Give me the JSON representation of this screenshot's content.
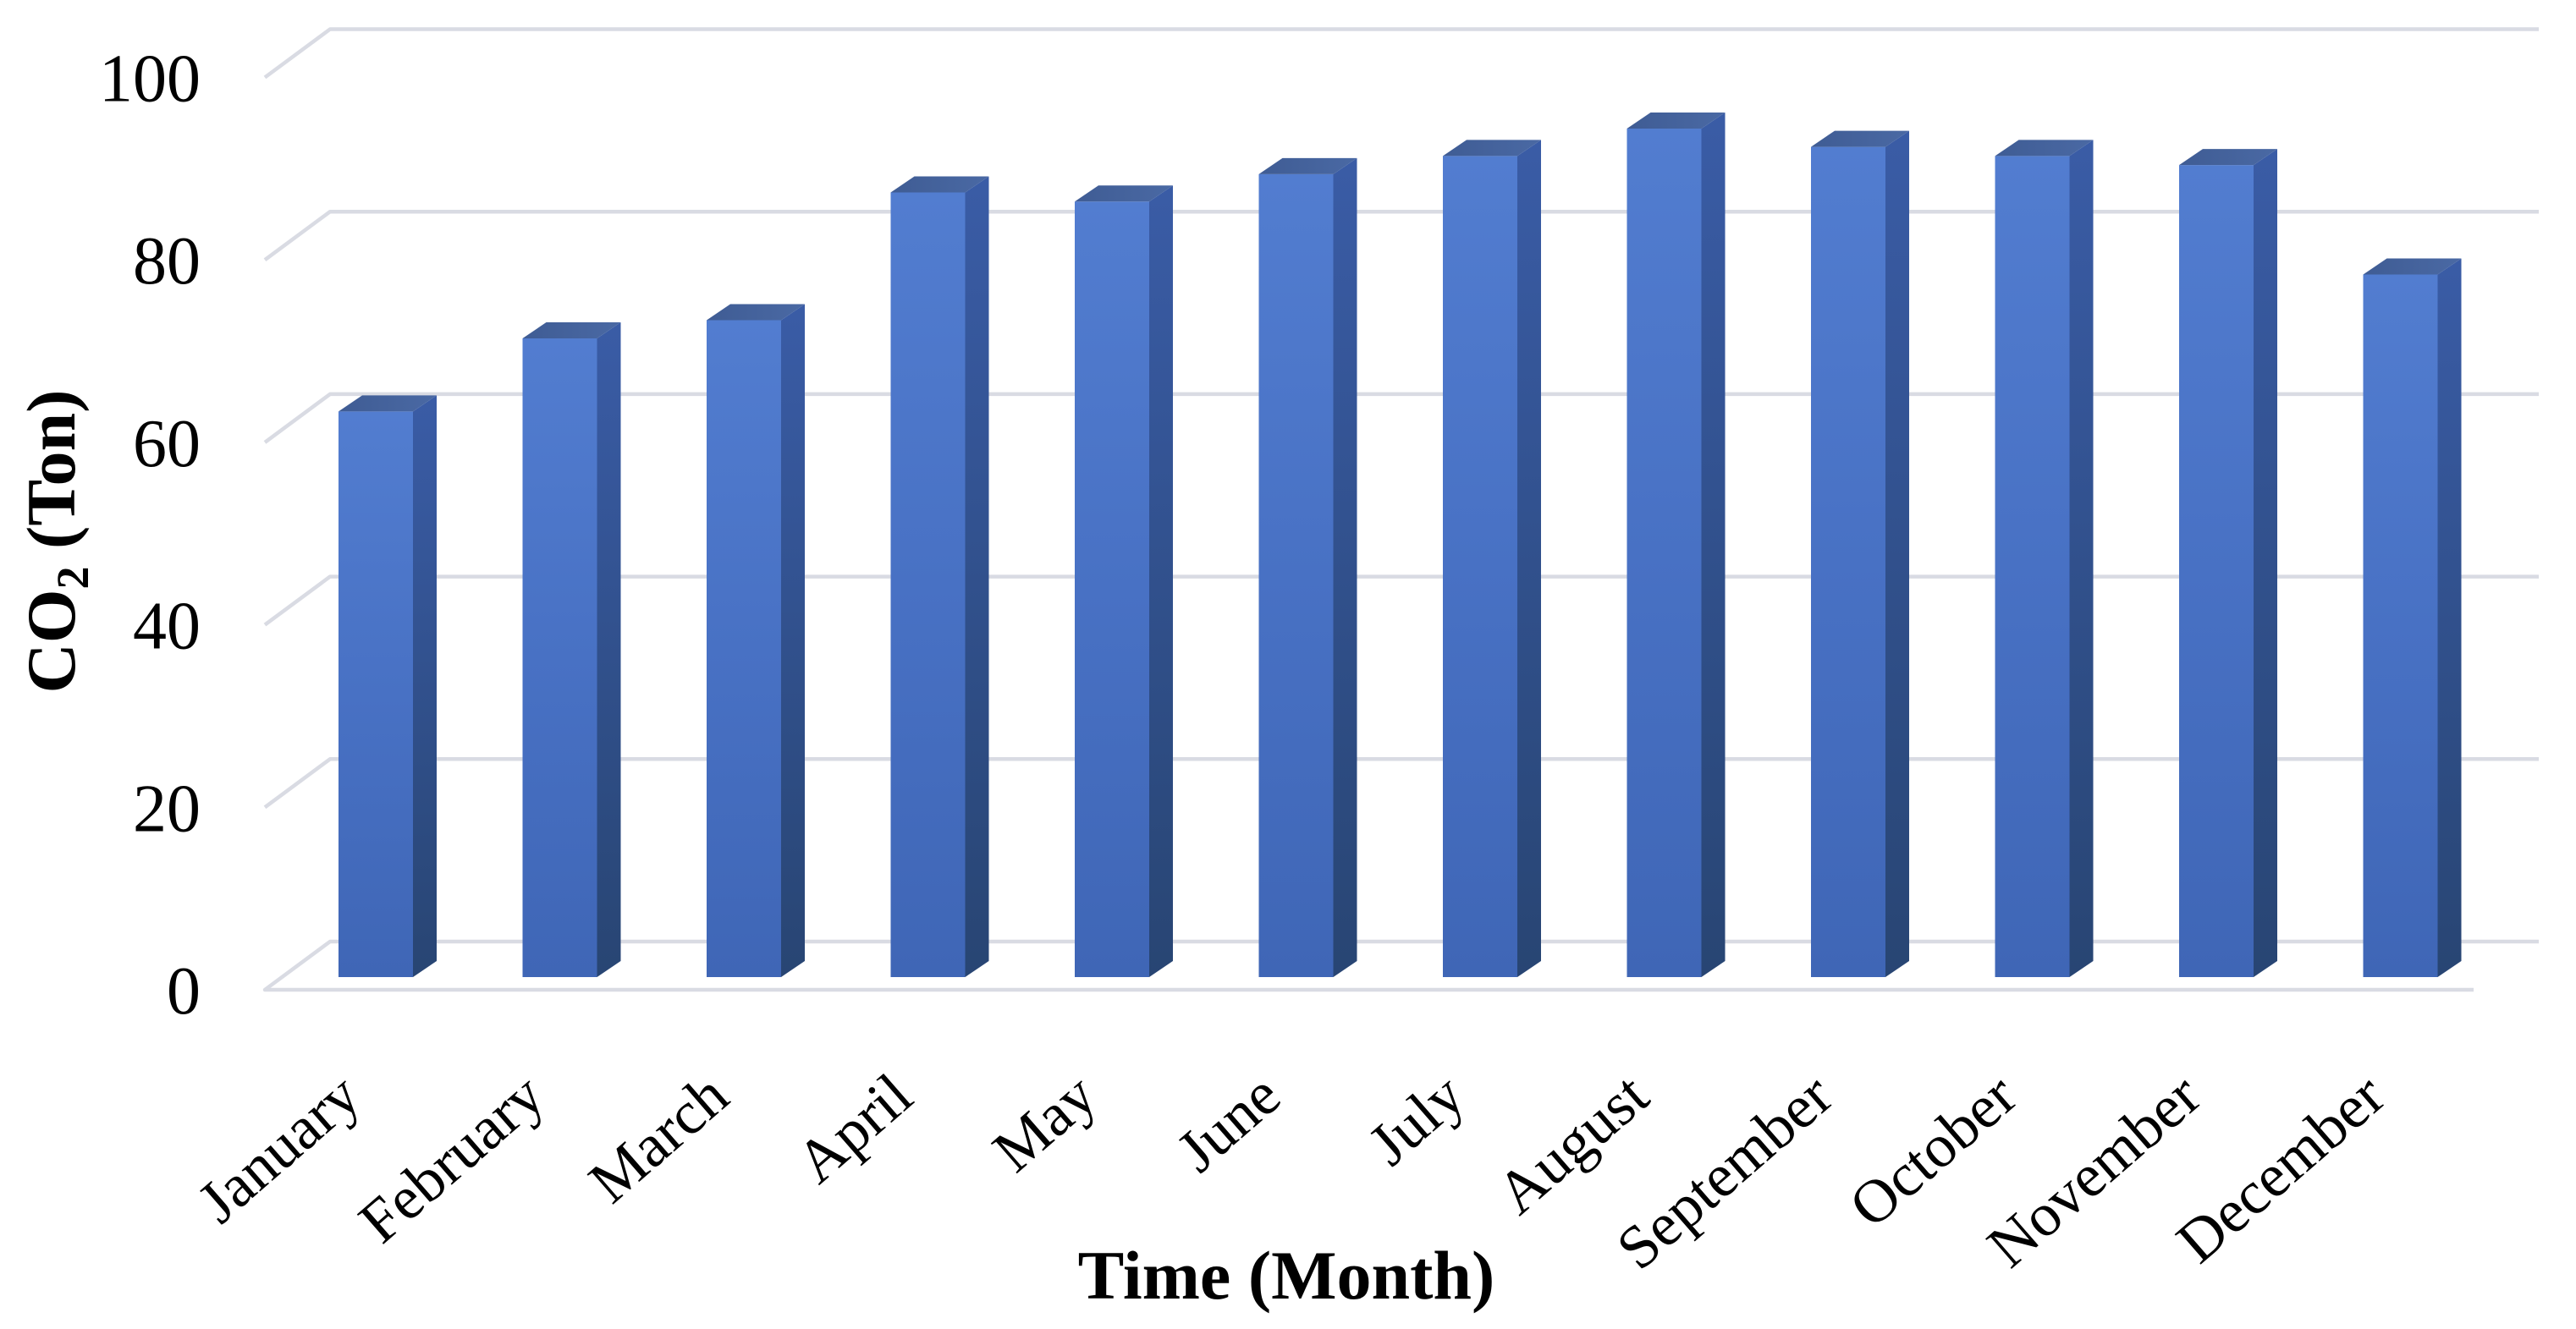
{
  "chart_data": {
    "type": "bar",
    "title": "",
    "categories": [
      "January",
      "February",
      "March",
      "April",
      "May",
      "June",
      "July",
      "August",
      "September",
      "October",
      "November",
      "December"
    ],
    "values": [
      62,
      70,
      72,
      86,
      85,
      88,
      90,
      93,
      91,
      90,
      89,
      77
    ],
    "xlabel": "Time (Month)",
    "ylabel": "CO2 (Ton)",
    "ylabel_parts": {
      "prefix": "CO",
      "subscript": "2",
      "suffix": " (Ton)"
    },
    "yticks": [
      0,
      20,
      40,
      60,
      80,
      100
    ],
    "ylim": [
      0,
      100
    ],
    "grid": "horizontal-back-wall",
    "legend": "none",
    "style_3d": true,
    "colors": {
      "bar_front": "#4a73c6",
      "bar_side": "#2c4a80",
      "bar_top": "#42619b",
      "gridline": "#d9dbe3",
      "text": "#000000",
      "background": "#ffffff"
    }
  }
}
